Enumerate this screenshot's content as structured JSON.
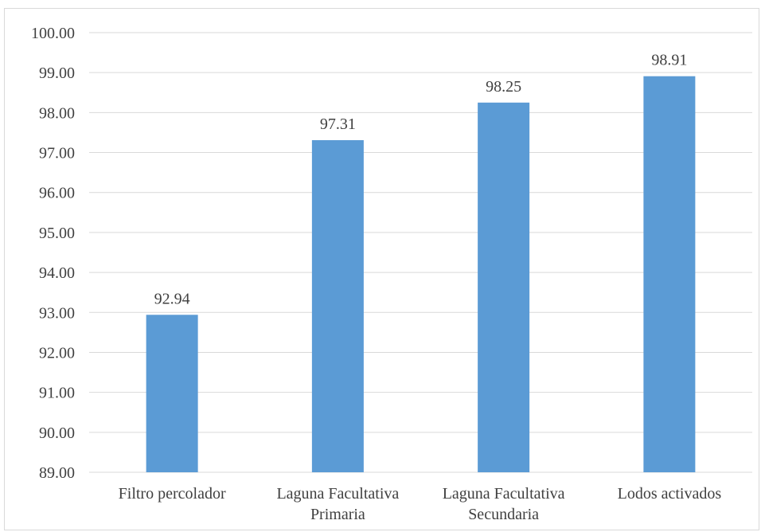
{
  "chart_data": {
    "type": "bar",
    "categories": [
      [
        "Filtro percolador"
      ],
      [
        "Laguna Facultativa",
        "Primaria"
      ],
      [
        "Laguna Facultativa",
        "Secundaria"
      ],
      [
        "Lodos activados"
      ]
    ],
    "values": [
      92.94,
      97.31,
      98.25,
      98.91
    ],
    "data_labels": [
      "92.94",
      "97.31",
      "98.25",
      "98.91"
    ],
    "ylim": [
      89,
      100
    ],
    "y_ticks": [
      "89.00",
      "90.00",
      "91.00",
      "92.00",
      "93.00",
      "94.00",
      "95.00",
      "96.00",
      "97.00",
      "98.00",
      "99.00",
      "100.00"
    ],
    "title": "",
    "xlabel": "",
    "ylabel": "",
    "grid": true,
    "legend": "none",
    "colors": {
      "bar": "#5b9bd5",
      "grid": "#d9d9d9",
      "text": "#404040",
      "border": "#d9d9d9"
    }
  }
}
